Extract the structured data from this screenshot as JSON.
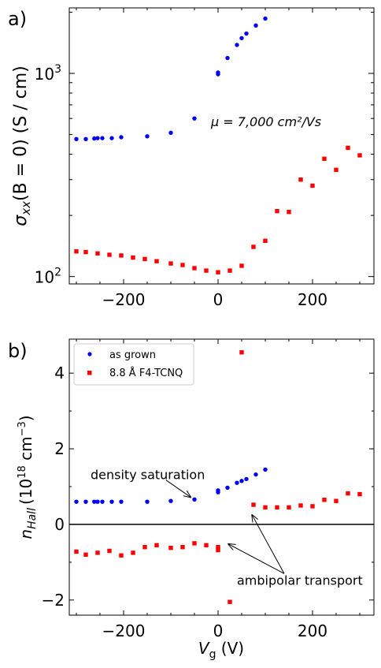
{
  "colors": {
    "blue": "#0000ff",
    "red": "#ff0000",
    "black": "#000000"
  },
  "chart_data": [
    {
      "panel_label": "a)",
      "type": "scatter",
      "ylabel": "σxx(B = 0) (S / cm)",
      "ylabel_parts": {
        "sigma": "σ",
        "sub": "xx",
        "rest": "(B = 0) (S / cm)"
      },
      "yscale": "log",
      "xlim": [
        -315,
        330
      ],
      "ylim": [
        92,
        2100
      ],
      "x_ticks": [
        -200,
        0,
        200
      ],
      "x_tick_labels": [
        "−200",
        "0",
        "200"
      ],
      "y_ticks": [
        100,
        1000
      ],
      "y_tick_labels": [
        {
          "base": "10",
          "exp": "2"
        },
        {
          "base": "10",
          "exp": "3"
        }
      ],
      "annotation": {
        "text": "μ = 7,000 cm²/Vs",
        "x": -15,
        "y": 550
      },
      "series": [
        {
          "color": "#0000ff",
          "marker": "circle",
          "x": [
            -300,
            -280,
            -262,
            -255,
            -245,
            -225,
            -205,
            -150,
            -100,
            -50,
            0,
            0,
            20,
            40,
            50,
            60,
            80,
            100
          ],
          "y": [
            475,
            475,
            478,
            480,
            480,
            480,
            485,
            490,
            510,
            600,
            990,
            1010,
            1190,
            1380,
            1490,
            1570,
            1720,
            1860
          ]
        },
        {
          "color": "#ff0000",
          "marker": "square",
          "x": [
            -300,
            -280,
            -255,
            -230,
            -205,
            -180,
            -155,
            -130,
            -100,
            -75,
            -50,
            -25,
            0,
            25,
            50,
            75,
            100,
            125,
            150,
            175,
            200,
            225,
            250,
            275,
            300
          ],
          "y": [
            133,
            132,
            130,
            128,
            127,
            124,
            122,
            119,
            116,
            114,
            110,
            107,
            105,
            107,
            113,
            140,
            150,
            210,
            208,
            300,
            280,
            380,
            335,
            430,
            395
          ]
        }
      ]
    },
    {
      "panel_label": "b)",
      "type": "scatter",
      "ylabel": "nHall (1018 cm−3)",
      "ylabel_parts": {
        "n": "n",
        "sub": "Hall",
        "open": "(10",
        "exp1": "18",
        "unit": " cm",
        "exp2": "−3",
        "close": ")"
      },
      "xlabel": "Vg (V)",
      "xlabel_parts": {
        "v": "V",
        "sub": "g",
        "rest": " (V)"
      },
      "xlim": [
        -315,
        330
      ],
      "ylim": [
        -2.4,
        4.9
      ],
      "x_ticks": [
        -200,
        0,
        200
      ],
      "x_tick_labels": [
        "−200",
        "0",
        "200"
      ],
      "y_ticks": [
        -2,
        0,
        2,
        4
      ],
      "y_tick_labels": [
        "−2",
        "0",
        "2",
        "4"
      ],
      "zero_line": 0,
      "legend": {
        "position": "top-left",
        "entries": [
          {
            "label": "as grown",
            "color": "#0000ff",
            "marker": "circle"
          },
          {
            "label": "8.8 Å F4-TCNQ",
            "color": "#ff0000",
            "marker": "square"
          }
        ]
      },
      "annotations": [
        {
          "text": "density saturation",
          "x": -270,
          "y": 1.2,
          "arrow_from": [
            -110,
            1.17
          ],
          "arrow_to": [
            -58,
            0.72
          ]
        },
        {
          "text": "ambipolar transport",
          "x": 40,
          "y": -1.6,
          "arrows_from": [
            [
              140,
              -1.3
            ],
            [
              140,
              -1.3
            ]
          ],
          "arrows_to": [
            [
              72,
              0.25
            ],
            [
              22,
              -0.52
            ]
          ]
        }
      ],
      "series": [
        {
          "color": "#0000ff",
          "marker": "circle",
          "x": [
            -300,
            -280,
            -262,
            -255,
            -245,
            -225,
            -205,
            -150,
            -100,
            -50,
            0,
            0,
            20,
            40,
            50,
            60,
            80,
            100
          ],
          "y": [
            0.6,
            0.6,
            0.6,
            0.6,
            0.6,
            0.6,
            0.6,
            0.6,
            0.62,
            0.66,
            0.85,
            0.9,
            0.97,
            1.1,
            1.15,
            1.2,
            1.32,
            1.45
          ]
        },
        {
          "color": "#ff0000",
          "marker": "square",
          "x": [
            -300,
            -280,
            -255,
            -230,
            -205,
            -180,
            -155,
            -130,
            -100,
            -75,
            -50,
            -25,
            0,
            0,
            25,
            50,
            75,
            100,
            125,
            150,
            175,
            200,
            225,
            250,
            275,
            300
          ],
          "y": [
            -0.72,
            -0.8,
            -0.75,
            -0.7,
            -0.82,
            -0.75,
            -0.6,
            -0.55,
            -0.62,
            -0.6,
            -0.5,
            -0.55,
            -0.6,
            -0.68,
            -2.05,
            4.55,
            0.52,
            0.45,
            0.45,
            0.45,
            0.5,
            0.48,
            0.65,
            0.62,
            0.82,
            0.8
          ]
        }
      ]
    }
  ]
}
